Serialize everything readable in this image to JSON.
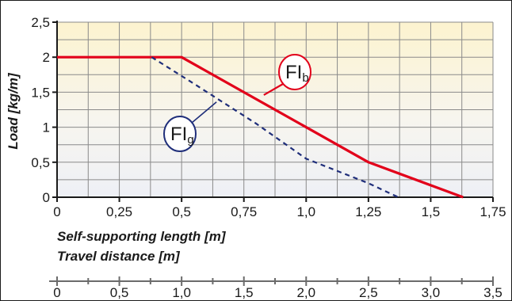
{
  "chart_data": {
    "type": "line",
    "ylabel": "Load [kg/m]",
    "xlabel": "Self-supporting length [m]",
    "x2label": "Travel distance [m]",
    "xlim": [
      0,
      1.75
    ],
    "ylim": [
      0,
      2.5
    ],
    "x_ticks": [
      0,
      0.25,
      0.5,
      0.75,
      1.0,
      1.25,
      1.5,
      1.75
    ],
    "x_tick_labels": [
      "0",
      "0,25",
      "0,5",
      "0,75",
      "1,0",
      "1,25",
      "1,5",
      "1,75"
    ],
    "y_ticks": [
      0,
      0.5,
      1,
      1.5,
      2,
      2.5
    ],
    "y_tick_labels": [
      "0",
      "0,5",
      "1",
      "1,5",
      "2",
      "2,5"
    ],
    "x2_ticks": [
      0,
      0.5,
      1.0,
      1.5,
      2.0,
      2.5,
      3.0,
      3.5
    ],
    "x2_tick_labels": [
      "0",
      "0,5",
      "1,0",
      "1,5",
      "2,0",
      "2,5",
      "3,0",
      "3,5"
    ],
    "grid": true,
    "series": [
      {
        "label_main": "FI",
        "label_sub": "b",
        "color": "#e2001a",
        "style": "solid",
        "points": [
          [
            0,
            2.0
          ],
          [
            0.5,
            2.0
          ],
          [
            1.25,
            0.5
          ],
          [
            1.63,
            0.0
          ]
        ]
      },
      {
        "label_main": "FI",
        "label_sub": "g",
        "color": "#1f2e7a",
        "style": "dashed",
        "points": [
          [
            0.38,
            2.0
          ],
          [
            0.55,
            1.62
          ],
          [
            0.8,
            1.05
          ],
          [
            1.0,
            0.55
          ],
          [
            1.25,
            0.2
          ],
          [
            1.37,
            0.0
          ]
        ]
      }
    ]
  }
}
